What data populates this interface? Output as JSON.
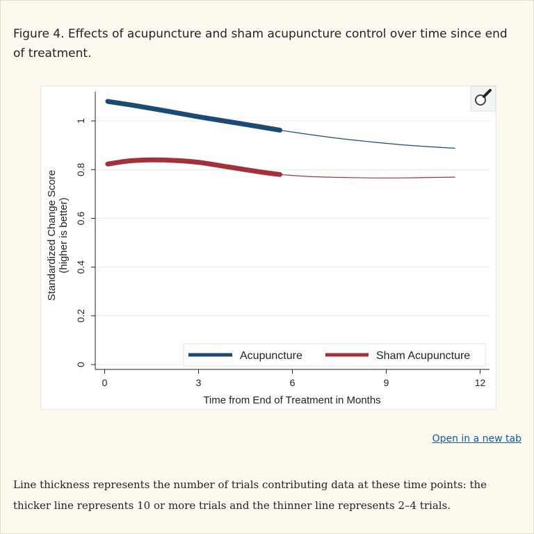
{
  "figure": {
    "title": "Figure 4. Effects of acupuncture and sham acupuncture control over time since end of treatment.",
    "open_link": "Open in a new tab",
    "footnote": "Line thickness represents the number of trials contributing data at these time points: the thicker line represents 10 or more trials and the thinner line represents 2–4 trials.",
    "zoom_icon": "magnifier-icon"
  },
  "chart_data": {
    "type": "line",
    "xlabel": "Time from End of Treatment in Months",
    "ylabel": "Standardized Change Score",
    "ylabel_sub": "(higher is better)",
    "xlim": [
      -0.3,
      12.3
    ],
    "ylim": [
      -0.02,
      1.12
    ],
    "xticks": [
      0,
      3,
      6,
      9,
      12
    ],
    "xtick_labels": [
      "0",
      "3",
      "6",
      "9",
      "12"
    ],
    "yticks": [
      0,
      0.2,
      0.4,
      0.6,
      0.8,
      1
    ],
    "ytick_labels": [
      "0",
      "0.2",
      "0.4",
      "0.6",
      "0.8",
      "1"
    ],
    "grid": true,
    "legend_position": "bottom-right",
    "thick_line_note": "10 or more trials",
    "thin_line_note": "2–4 trials",
    "series": [
      {
        "name": "Acupuncture",
        "color": "#1b4a72",
        "thick": {
          "x": [
            0.1,
            1,
            2,
            3,
            4,
            5,
            5.6
          ],
          "y": [
            1.08,
            1.062,
            1.04,
            1.017,
            0.996,
            0.975,
            0.962
          ]
        },
        "thin": {
          "x": [
            5.6,
            6.5,
            7.5,
            8.5,
            9.5,
            10.5,
            11.2
          ],
          "y": [
            0.962,
            0.945,
            0.928,
            0.914,
            0.902,
            0.893,
            0.888
          ]
        }
      },
      {
        "name": "Sham Acupuncture",
        "color": "#a3313b",
        "thick": {
          "x": [
            0.1,
            0.8,
            1.5,
            2.2,
            3,
            4,
            5,
            5.6
          ],
          "y": [
            0.823,
            0.836,
            0.84,
            0.838,
            0.83,
            0.81,
            0.79,
            0.78
          ]
        },
        "thin": {
          "x": [
            5.6,
            6.5,
            7.5,
            8.5,
            9.5,
            10.5,
            11.2
          ],
          "y": [
            0.78,
            0.772,
            0.768,
            0.766,
            0.766,
            0.768,
            0.769
          ]
        }
      }
    ]
  }
}
